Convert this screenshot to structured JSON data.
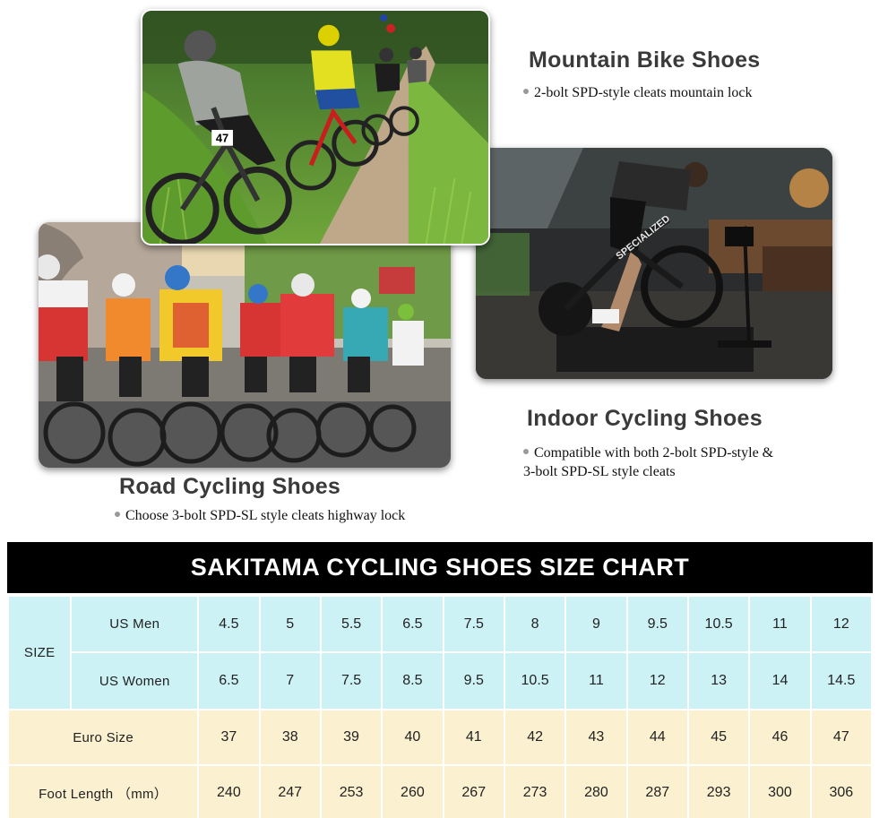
{
  "sections": {
    "mountain": {
      "heading": "Mountain Bike Shoes",
      "bullets": [
        "2-bolt SPD-style cleats mountain lock"
      ]
    },
    "indoor": {
      "heading": "Indoor Cycling Shoes",
      "bullets": [
        "Compatible with both 2-bolt SPD-style &",
        "3-bolt SPD-SL style cleats"
      ]
    },
    "road": {
      "heading": "Road Cycling Shoes",
      "bullets": [
        "Choose 3-bolt SPD-SL style cleats highway lock"
      ]
    }
  },
  "photo_text": {
    "mtb_bib": "47",
    "indoor_bike_brand": "SPECIALIZED"
  },
  "colors": {
    "table_blue": "#cdf2f6",
    "table_cream": "#fbf0cf",
    "title_bar": "#000000"
  },
  "size_chart": {
    "title": "SAKITAMA CYCLING SHOES SIZE CHART",
    "size_label": "SIZE",
    "rows": [
      {
        "label": "US Men",
        "values": [
          "4.5",
          "5",
          "5.5",
          "6.5",
          "7.5",
          "8",
          "9",
          "9.5",
          "10.5",
          "11",
          "12"
        ]
      },
      {
        "label": "US Women",
        "values": [
          "6.5",
          "7",
          "7.5",
          "8.5",
          "9.5",
          "10.5",
          "11",
          "12",
          "13",
          "14",
          "14.5"
        ]
      },
      {
        "label": "Euro Size",
        "values": [
          "37",
          "38",
          "39",
          "40",
          "41",
          "42",
          "43",
          "44",
          "45",
          "46",
          "47"
        ]
      },
      {
        "label": "Foot Length （mm）",
        "values": [
          "240",
          "247",
          "253",
          "260",
          "267",
          "273",
          "280",
          "287",
          "293",
          "300",
          "306"
        ]
      }
    ]
  }
}
